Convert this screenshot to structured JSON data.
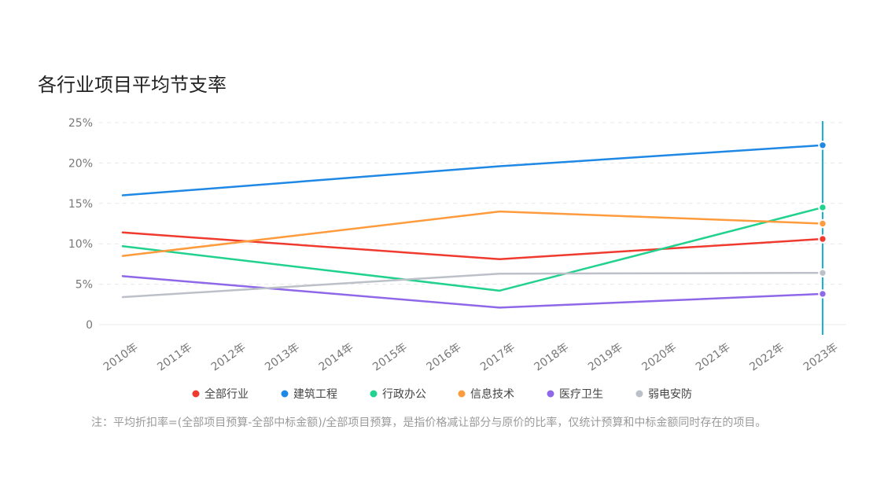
{
  "chart_title": "各行业项目平均节支率",
  "note": "注：平均折扣率=(全部项目预算-全部中标金额)/全部项目预算，是指价格减让部分与原价的比率，仅统计预算和中标金额同时存在的项目。",
  "chart_data": {
    "type": "line",
    "title": "各行业项目平均节支率",
    "xlabel": "",
    "ylabel": "",
    "categories": [
      "2010年",
      "2011年",
      "2012年",
      "2013年",
      "2014年",
      "2015年",
      "2016年",
      "2017年",
      "2018年",
      "2019年",
      "2020年",
      "2021年",
      "2022年",
      "2023年"
    ],
    "y_ticks": [
      "0",
      "5%",
      "10%",
      "15%",
      "20%",
      "25%"
    ],
    "ylim": [
      0,
      25
    ],
    "grid": true,
    "legend_position": "bottom",
    "highlight_category": "2023年",
    "series": [
      {
        "name": "全部行业",
        "color": "#f03a2e",
        "points": [
          {
            "x": "2010年",
            "y": 11.4
          },
          {
            "x": "2017年",
            "y": 8.1
          },
          {
            "x": "2023年",
            "y": 10.6
          }
        ]
      },
      {
        "name": "建筑工程",
        "color": "#1f88e5",
        "points": [
          {
            "x": "2010年",
            "y": 16.0
          },
          {
            "x": "2017年",
            "y": 19.6
          },
          {
            "x": "2023年",
            "y": 22.2
          }
        ]
      },
      {
        "name": "行政办公",
        "color": "#21d18e",
        "points": [
          {
            "x": "2010年",
            "y": 9.7
          },
          {
            "x": "2017年",
            "y": 4.2
          },
          {
            "x": "2023年",
            "y": 14.5
          }
        ]
      },
      {
        "name": "信息技术",
        "color": "#ff9b3d",
        "points": [
          {
            "x": "2010年",
            "y": 8.5
          },
          {
            "x": "2017年",
            "y": 14.0
          },
          {
            "x": "2023年",
            "y": 12.5
          }
        ]
      },
      {
        "name": "医疗卫生",
        "color": "#8e68e8",
        "points": [
          {
            "x": "2010年",
            "y": 6.0
          },
          {
            "x": "2017年",
            "y": 2.1
          },
          {
            "x": "2023年",
            "y": 3.8
          }
        ]
      },
      {
        "name": "弱电安防",
        "color": "#bcc0c8",
        "points": [
          {
            "x": "2010年",
            "y": 3.4
          },
          {
            "x": "2017年",
            "y": 6.3
          },
          {
            "x": "2023年",
            "y": 6.4
          }
        ]
      }
    ]
  },
  "colors": {
    "grid": "#e8e8e8",
    "axis_text": "#777777",
    "highlight_line": "#15b3d6"
  }
}
